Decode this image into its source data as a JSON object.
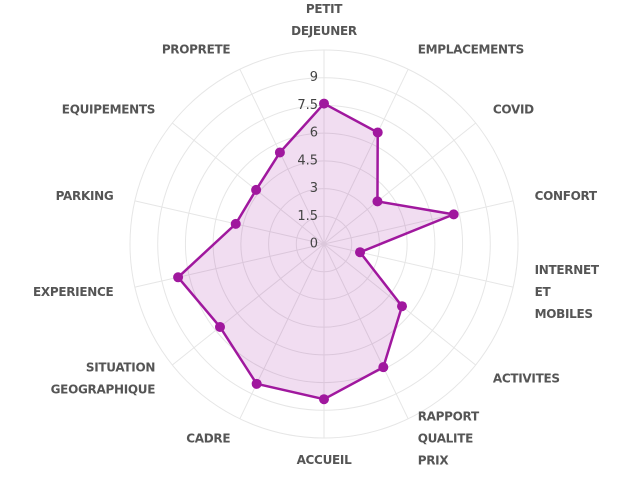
{
  "chart_data": {
    "type": "radar",
    "categories": [
      "PETIT DEJEUNER",
      "EMPLACEMENTS",
      "COVID",
      "CONFORT",
      "INTERNET ET MOBILES",
      "ACTIVITES",
      "RAPPORT QUALITE PRIX",
      "ACCUEIL",
      "CADRE",
      "SITUATION GEOGRAPHIQUE",
      "EXPERIENCE",
      "PARKING",
      "EQUIPEMENTS",
      "PROPRETE"
    ],
    "values": [
      7.6,
      6.7,
      3.7,
      7.2,
      2.0,
      5.4,
      7.4,
      8.4,
      8.4,
      7.2,
      8.1,
      4.9,
      4.7,
      5.5
    ],
    "color": "#a0189e",
    "ylim": [
      0,
      10.5
    ],
    "yticks": [
      0,
      1.5,
      3,
      4.5,
      6,
      7.5,
      9
    ],
    "grid": true
  }
}
